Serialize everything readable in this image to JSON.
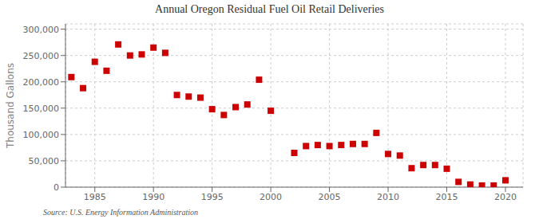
{
  "chart_data": {
    "type": "scatter",
    "title": "Annual Oregon Residual Fuel Oil Retail Deliveries",
    "ylabel": "Thousand Gallons",
    "annotations": [
      "Source: U.S. Energy Information Administration"
    ],
    "x": [
      1983,
      1984,
      1985,
      1986,
      1987,
      1988,
      1989,
      1990,
      1991,
      1992,
      1993,
      1994,
      1995,
      1996,
      1997,
      1998,
      1999,
      2000,
      2002,
      2003,
      2004,
      2005,
      2006,
      2007,
      2008,
      2009,
      2010,
      2011,
      2012,
      2013,
      2014,
      2015,
      2016,
      2017,
      2018,
      2019,
      2020
    ],
    "values": [
      209000,
      188000,
      238000,
      221000,
      271000,
      250000,
      252000,
      265000,
      255000,
      175000,
      172000,
      170000,
      148000,
      137000,
      152000,
      157000,
      204000,
      145000,
      65000,
      78000,
      80000,
      78000,
      80000,
      82000,
      82000,
      103000,
      63000,
      60000,
      36000,
      42000,
      42000,
      35000,
      10000,
      5000,
      3000,
      3000,
      13000
    ],
    "color": "#cc0000",
    "marker": "square",
    "xlim": [
      1982.5,
      2021.5
    ],
    "xticks": [
      1985,
      1990,
      1995,
      2000,
      2005,
      2010,
      2015,
      2020
    ],
    "ylim": [
      0,
      310000
    ],
    "yticks": [
      0,
      {
        "value": 50000,
        "label": "50,000"
      },
      {
        "value": 100000,
        "label": "100,000"
      },
      {
        "value": 150000,
        "label": "150,000"
      },
      {
        "value": 200000,
        "label": "200,000"
      },
      {
        "value": 250000,
        "label": "250,000"
      },
      {
        "value": 300000,
        "label": "300,000"
      }
    ],
    "grid": true
  }
}
